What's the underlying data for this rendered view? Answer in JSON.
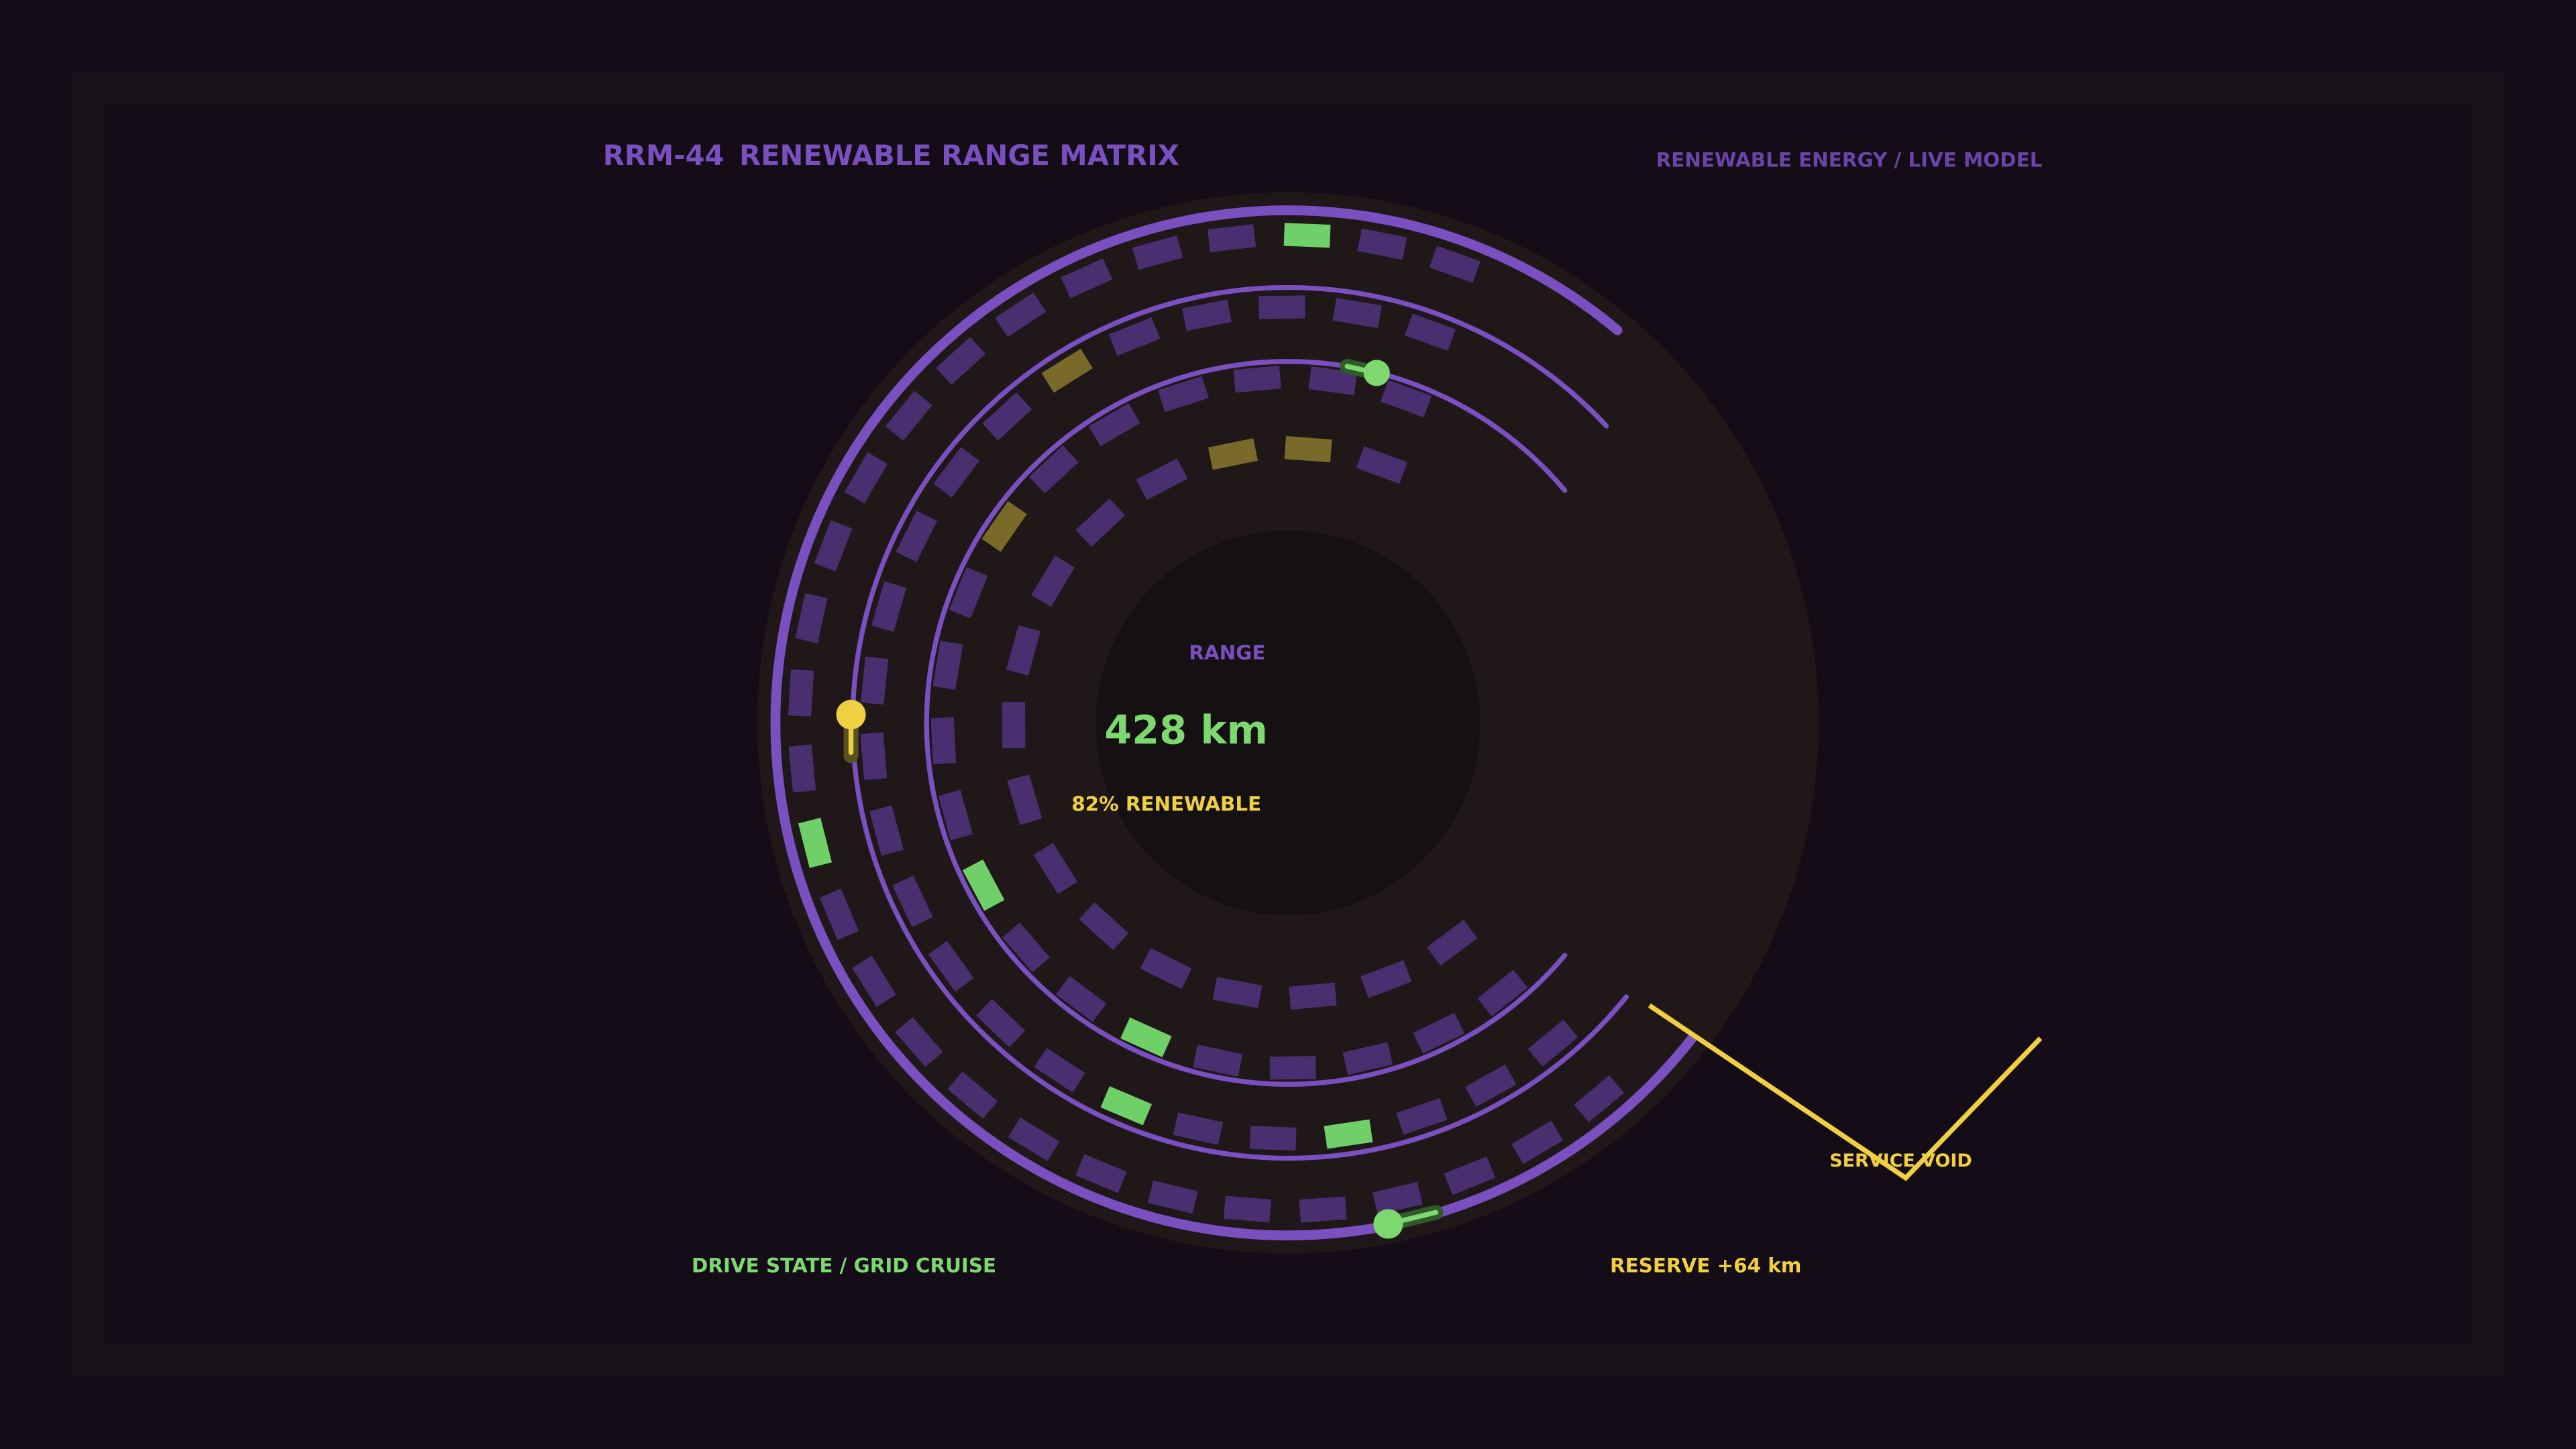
{
  "header": {
    "code": "RRM-44",
    "title": "RENEWABLE RANGE MATRIX",
    "subtitle": "RENEWABLE ENERGY / LIVE MODEL"
  },
  "gauge": {
    "label": "RANGE",
    "value": "428 km",
    "share": "82% RENEWABLE"
  },
  "annotation": "SERVICE VOID",
  "footer": {
    "state": "DRIVE STATE / GRID CRUISE",
    "reserve": "RESERVE +64 km"
  }
}
